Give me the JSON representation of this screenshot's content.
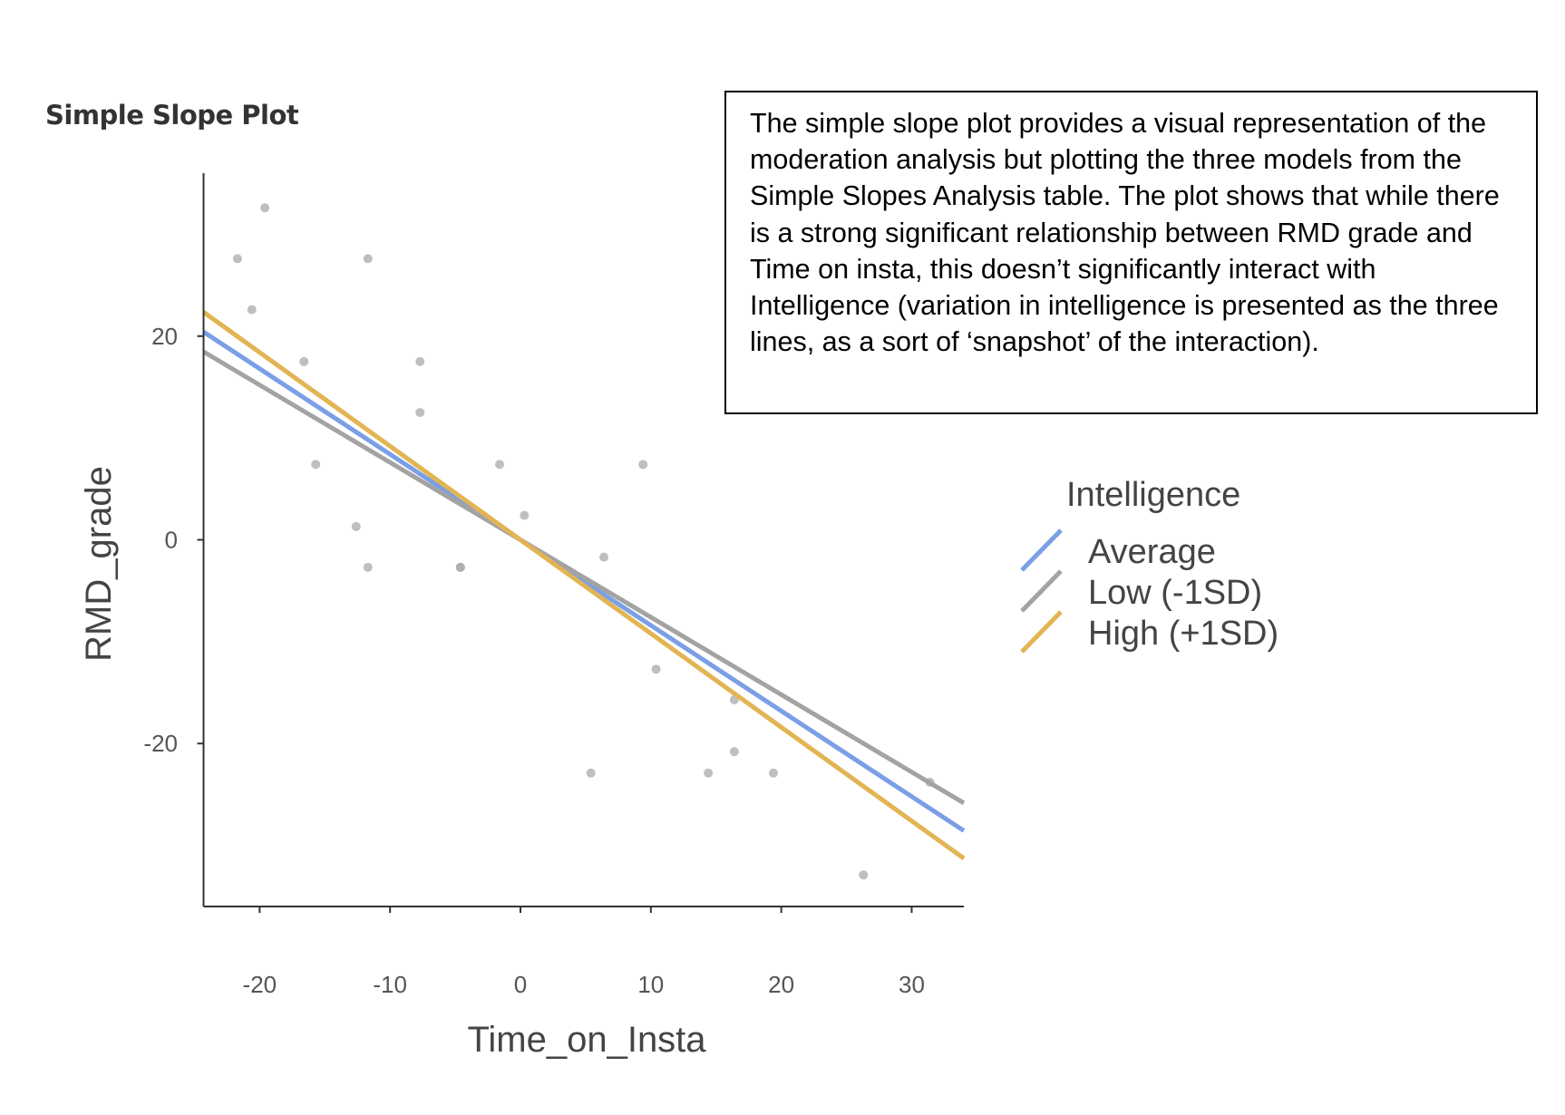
{
  "page_title": "Simple Slope Plot",
  "note_text": "The simple slope plot provides a visual representation of the moderation analysis but plotting the three models from the Simple Slopes Analysis table. The plot shows that while there is a strong significant relationship between RMD grade and Time on insta, this doesn’t significantly interact with Intelligence (variation in intelligence is presented as the three lines, as a sort of ‘snapshot’ of the interaction).",
  "chart_data": {
    "type": "line",
    "title": "Simple Slope Plot",
    "xlabel": "Time_on_Insta",
    "ylabel": "RMD_grade",
    "xlim": [
      -24.3,
      34
    ],
    "ylim": [
      -36,
      36
    ],
    "x_ticks": [
      -20,
      -10,
      0,
      10,
      20,
      30
    ],
    "y_ticks": [
      20,
      0,
      -20
    ],
    "grid": false,
    "legend": {
      "title": "Intelligence",
      "placement": "right"
    },
    "series": [
      {
        "name": "Average",
        "color": "#7b9fe6",
        "intercept": 0,
        "slope": -0.84
      },
      {
        "name": "Low (-1SD)",
        "color": "#a3a3a3",
        "intercept": 0,
        "slope": -0.76
      },
      {
        "name": "High (+1SD)",
        "color": "#e2b453",
        "intercept": 0,
        "slope": -0.92
      }
    ],
    "points": [
      [
        -19.6,
        32.6
      ],
      [
        -21.7,
        27.6
      ],
      [
        -20.6,
        22.6
      ],
      [
        -11.7,
        27.6
      ],
      [
        -16.6,
        17.5
      ],
      [
        -7.7,
        17.5
      ],
      [
        -7.7,
        12.5
      ],
      [
        -15.7,
        7.4
      ],
      [
        -1.6,
        7.4
      ],
      [
        9.4,
        7.4
      ],
      [
        0.3,
        2.4
      ],
      [
        -12.6,
        1.3
      ],
      [
        -11.7,
        -2.7
      ],
      [
        -4.6,
        -2.7
      ],
      [
        -4.6,
        -2.7
      ],
      [
        6.4,
        -1.7
      ],
      [
        10.4,
        -12.7
      ],
      [
        16.4,
        -15.7
      ],
      [
        16.4,
        -20.8
      ],
      [
        5.4,
        -22.9
      ],
      [
        14.4,
        -22.9
      ],
      [
        19.4,
        -22.9
      ],
      [
        31.4,
        -23.8
      ],
      [
        26.3,
        -32.9
      ]
    ],
    "point_color": "#aaaaaa"
  }
}
